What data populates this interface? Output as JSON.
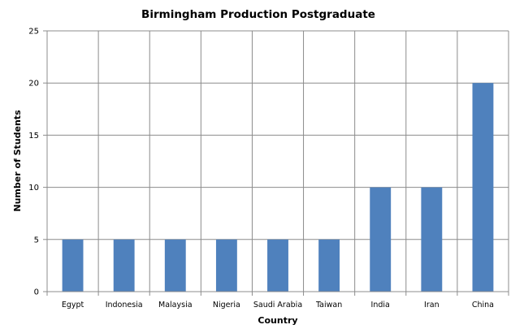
{
  "chart_data": {
    "type": "bar",
    "title": "Birmingham Production Postgraduate",
    "xlabel": "Country",
    "ylabel": "Number of Students",
    "categories": [
      "Egypt",
      "Indonesia",
      "Malaysia",
      "Nigeria",
      "Saudi Arabia",
      "Taiwan",
      "India",
      "Iran",
      "China"
    ],
    "values": [
      5,
      5,
      5,
      5,
      5,
      5,
      10,
      10,
      20
    ],
    "ylim": [
      0,
      25
    ],
    "yticks": [
      0,
      5,
      10,
      15,
      20,
      25
    ],
    "grid": {
      "horizontal": true,
      "vertical": true
    },
    "bar_color": "#4f81bd",
    "legend": "none"
  }
}
